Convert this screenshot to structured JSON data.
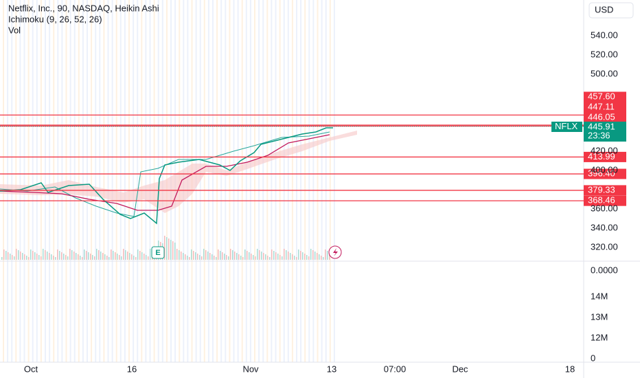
{
  "header": {
    "title": "Netflix, Inc., 90, NASDAQ, Heikin Ashi",
    "indicators": [
      "Ichimoku (9, 26, 52, 26)",
      "Vol"
    ]
  },
  "currency": "USD",
  "price_axis": [
    {
      "value": 540,
      "label": "540.00"
    },
    {
      "value": 520,
      "label": "520.00"
    },
    {
      "value": 500,
      "label": "500.00"
    },
    {
      "value": 420,
      "label": "420.00"
    },
    {
      "value": 400,
      "label": "400.00"
    },
    {
      "value": 360,
      "label": "360.00"
    },
    {
      "value": 340,
      "label": "340.00"
    },
    {
      "value": 320,
      "label": "320.00"
    }
  ],
  "volume_axis_zero": "0.0000",
  "levels": [
    {
      "value": 457.6,
      "label": "457.60"
    },
    {
      "value": 447.11,
      "label": "447.11"
    },
    {
      "value": 446.05,
      "label": "446.05"
    },
    {
      "value": 413.99,
      "label": "413.99"
    },
    {
      "value": 396.4,
      "label": "396.40"
    },
    {
      "value": 379.33,
      "label": "379.33"
    },
    {
      "value": 368.46,
      "label": "368.46"
    }
  ],
  "last_price": {
    "symbol": "NFLX",
    "value": 445.91,
    "label": "445.91",
    "countdown": "23:36"
  },
  "volume_scale": [
    "14M",
    "13M",
    "12M",
    "0"
  ],
  "time_axis": [
    "Oct",
    "16",
    "Nov",
    "13",
    "07:00",
    "Dec",
    "18"
  ],
  "earnings_marker": "E"
}
